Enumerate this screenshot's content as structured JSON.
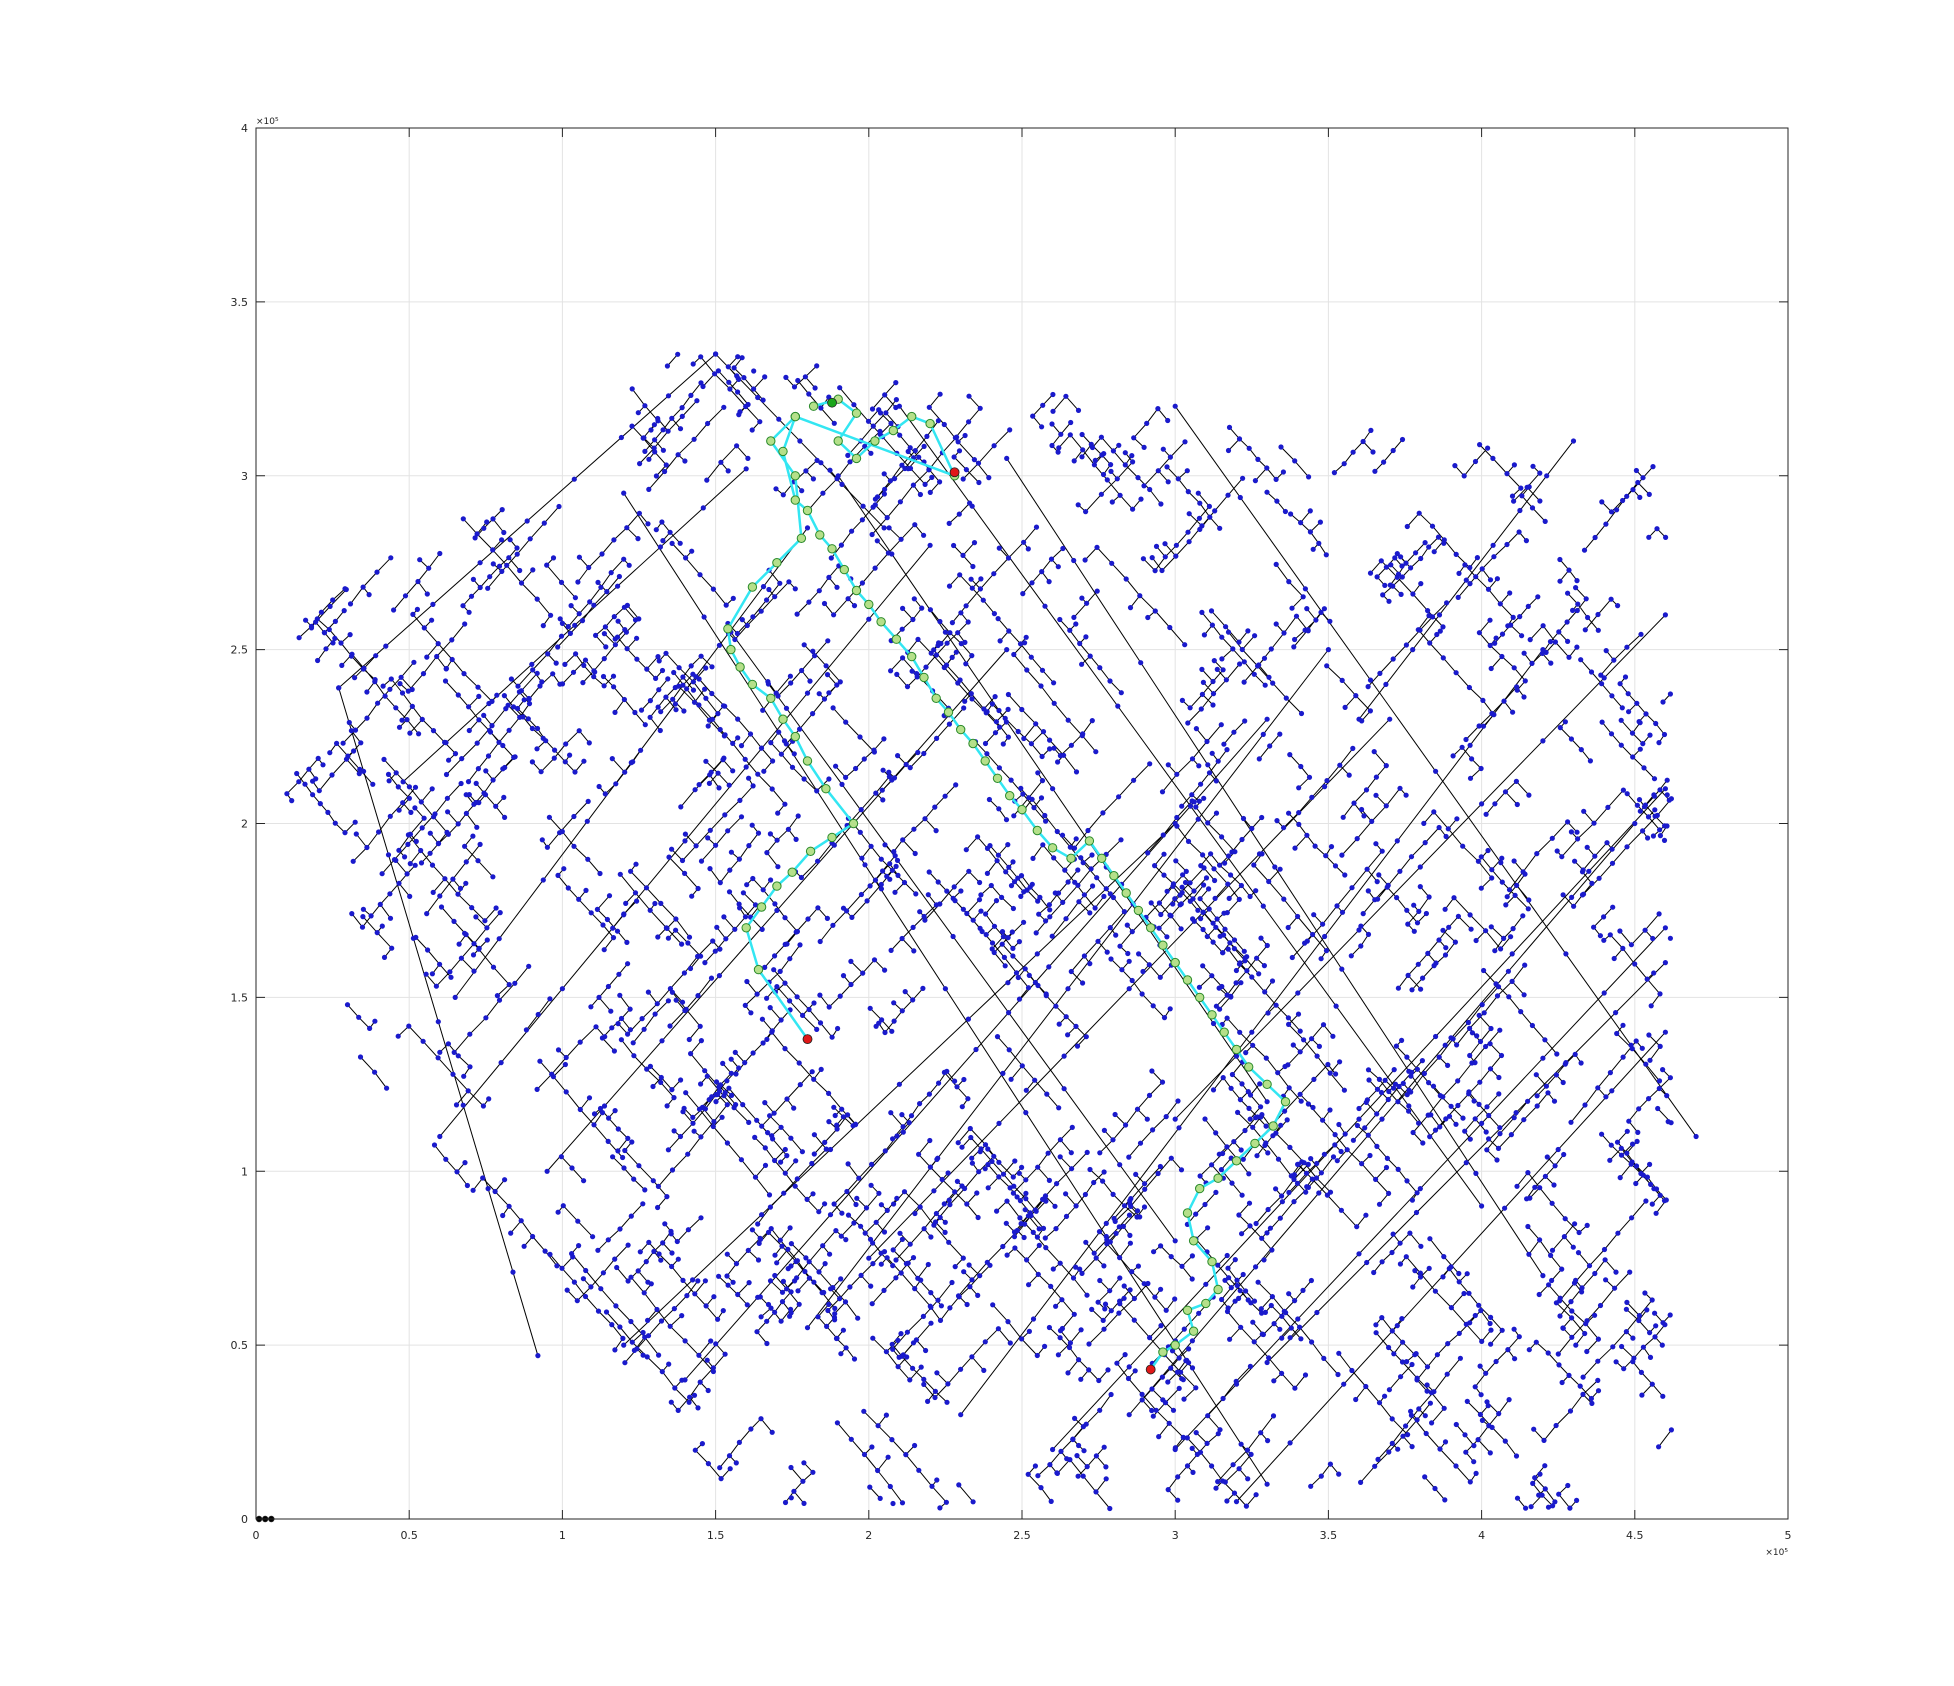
{
  "chart_data": {
    "type": "scatter",
    "subtype": "network-graph",
    "title": "",
    "xlabel": "",
    "ylabel": "",
    "xlim": [
      0,
      500000
    ],
    "ylim": [
      0,
      400000
    ],
    "x_exponent_label": "×10⁵",
    "y_exponent_label": "×10⁵",
    "xticks": [
      0,
      50000,
      100000,
      150000,
      200000,
      250000,
      300000,
      350000,
      400000,
      450000,
      500000
    ],
    "xtick_labels": [
      "0",
      "0.5",
      "1",
      "1.5",
      "2",
      "2.5",
      "3",
      "3.5",
      "4",
      "4.5",
      "5"
    ],
    "yticks": [
      0,
      50000,
      100000,
      150000,
      200000,
      250000,
      300000,
      350000,
      400000
    ],
    "ytick_labels": [
      "0",
      "0.5",
      "1",
      "1.5",
      "2",
      "2.5",
      "3",
      "3.5",
      "4"
    ],
    "grid": true,
    "colors": {
      "node": "#1a1acc",
      "edge": "#000000",
      "path": "#33e6f2",
      "path_node_fill": "#b5e08a",
      "path_node_stroke": "#2a8a2a",
      "marker_red": "#e01818",
      "marker_green": "#1aa61a",
      "grid": "#e3e3e3",
      "axes": "#262626"
    },
    "network": {
      "nodes_displayed": 3600,
      "nodes_note": "approximate; several thousand blue nodes on diagonal street grid",
      "highways": [
        [
          [
            27000,
            239000
          ],
          [
            150000,
            335000
          ]
        ],
        [
          [
            48000,
            212000
          ],
          [
            160000,
            302000
          ]
        ],
        [
          [
            150000,
            335000
          ],
          [
            205000,
            285000
          ]
        ],
        [
          [
            27000,
            239000
          ],
          [
            92000,
            47000
          ]
        ],
        [
          [
            120000,
            295000
          ],
          [
            330000,
            10000
          ]
        ],
        [
          [
            155000,
            255000
          ],
          [
            300000,
            80000
          ]
        ],
        [
          [
            190000,
            300000
          ],
          [
            330000,
            120000
          ]
        ],
        [
          [
            210000,
            320000
          ],
          [
            400000,
            90000
          ]
        ],
        [
          [
            245000,
            305000
          ],
          [
            420000,
            70000
          ]
        ],
        [
          [
            300000,
            320000
          ],
          [
            470000,
            110000
          ]
        ],
        [
          [
            120000,
            50000
          ],
          [
            300000,
            200000
          ]
        ],
        [
          [
            140000,
            40000
          ],
          [
            330000,
            230000
          ]
        ],
        [
          [
            180000,
            55000
          ],
          [
            350000,
            250000
          ]
        ],
        [
          [
            230000,
            30000
          ],
          [
            420000,
            250000
          ]
        ],
        [
          [
            260000,
            20000
          ],
          [
            460000,
            210000
          ]
        ],
        [
          [
            285000,
            30000
          ],
          [
            450000,
            200000
          ]
        ],
        [
          [
            300000,
            20000
          ],
          [
            460000,
            170000
          ]
        ],
        [
          [
            320000,
            5000
          ],
          [
            460000,
            140000
          ]
        ],
        [
          [
            360000,
            230000
          ],
          [
            430000,
            310000
          ]
        ],
        [
          [
            330000,
            45000
          ],
          [
            460000,
            160000
          ]
        ],
        [
          [
            300000,
            115000
          ],
          [
            460000,
            260000
          ]
        ],
        [
          [
            200000,
            75000
          ],
          [
            370000,
            230000
          ]
        ],
        [
          [
            95000,
            100000
          ],
          [
            245000,
            250000
          ]
        ],
        [
          [
            60000,
            110000
          ],
          [
            220000,
            280000
          ]
        ],
        [
          [
            65000,
            150000
          ],
          [
            180000,
            285000
          ]
        ]
      ]
    },
    "route_main": [
      [
        182000,
        320000
      ],
      [
        190000,
        322000
      ],
      [
        196000,
        318000
      ],
      [
        190000,
        310000
      ],
      [
        196000,
        305000
      ],
      [
        202000,
        310000
      ],
      [
        208000,
        313000
      ],
      [
        214000,
        317000
      ],
      [
        220000,
        315000
      ],
      [
        228000,
        300000
      ],
      [
        176000,
        317000
      ],
      [
        172000,
        307000
      ],
      [
        176000,
        293000
      ],
      [
        180000,
        290000
      ],
      [
        184000,
        283000
      ],
      [
        188000,
        279000
      ],
      [
        192000,
        273000
      ],
      [
        196000,
        267000
      ],
      [
        200000,
        263000
      ],
      [
        204000,
        258000
      ],
      [
        209000,
        253000
      ],
      [
        214000,
        248000
      ],
      [
        218000,
        242000
      ],
      [
        222000,
        236000
      ],
      [
        226000,
        232000
      ],
      [
        230000,
        227000
      ],
      [
        234000,
        223000
      ],
      [
        238000,
        218000
      ],
      [
        242000,
        213000
      ],
      [
        246000,
        208000
      ],
      [
        250000,
        204000
      ],
      [
        255000,
        198000
      ],
      [
        260000,
        193000
      ],
      [
        266000,
        190000
      ],
      [
        272000,
        195000
      ],
      [
        276000,
        190000
      ],
      [
        280000,
        185000
      ],
      [
        284000,
        180000
      ],
      [
        288000,
        175000
      ],
      [
        292000,
        170000
      ],
      [
        296000,
        165000
      ],
      [
        300000,
        160000
      ],
      [
        304000,
        155000
      ],
      [
        308000,
        150000
      ],
      [
        312000,
        145000
      ],
      [
        316000,
        140000
      ],
      [
        320000,
        135000
      ],
      [
        324000,
        130000
      ],
      [
        330000,
        125000
      ],
      [
        336000,
        120000
      ],
      [
        332000,
        113000
      ],
      [
        326000,
        108000
      ],
      [
        320000,
        103000
      ],
      [
        314000,
        98000
      ],
      [
        308000,
        95000
      ],
      [
        304000,
        88000
      ],
      [
        306000,
        80000
      ],
      [
        312000,
        74000
      ],
      [
        314000,
        66000
      ],
      [
        310000,
        62000
      ],
      [
        304000,
        60000
      ],
      [
        306000,
        54000
      ],
      [
        300000,
        50000
      ],
      [
        296000,
        48000
      ],
      [
        292000,
        43000
      ]
    ],
    "route_branch": [
      [
        176000,
        317000
      ],
      [
        168000,
        310000
      ],
      [
        176000,
        300000
      ],
      [
        178000,
        282000
      ],
      [
        170000,
        275000
      ],
      [
        162000,
        268000
      ],
      [
        154000,
        256000
      ],
      [
        155000,
        250000
      ],
      [
        158000,
        245000
      ],
      [
        162000,
        240000
      ],
      [
        168000,
        236000
      ],
      [
        172000,
        230000
      ],
      [
        176000,
        225000
      ],
      [
        180000,
        218000
      ],
      [
        186000,
        210000
      ],
      [
        195000,
        200000
      ],
      [
        188000,
        196000
      ],
      [
        181000,
        192000
      ],
      [
        175000,
        186000
      ],
      [
        170000,
        182000
      ],
      [
        165000,
        176000
      ],
      [
        160000,
        170000
      ],
      [
        164000,
        158000
      ],
      [
        180000,
        138000
      ]
    ],
    "markers": [
      {
        "x": 228000,
        "y": 301000,
        "color": "red"
      },
      {
        "x": 180000,
        "y": 138000,
        "color": "red"
      },
      {
        "x": 292000,
        "y": 43000,
        "color": "red"
      },
      {
        "x": 188000,
        "y": 321000,
        "color": "green"
      },
      {
        "x": 1000,
        "y": 0,
        "color": "black"
      },
      {
        "x": 3000,
        "y": 0,
        "color": "black"
      },
      {
        "x": 5000,
        "y": 0,
        "color": "black"
      }
    ]
  }
}
